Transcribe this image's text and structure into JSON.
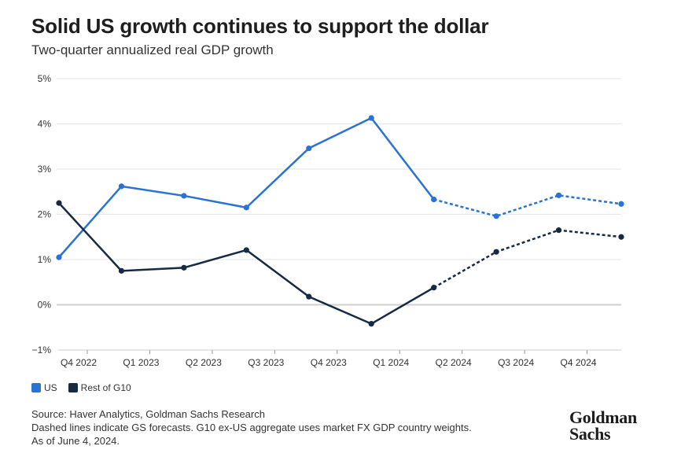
{
  "title": "Solid US growth continues to support the dollar",
  "subtitle": "Two-quarter annualized real GDP growth",
  "legend": [
    {
      "label": "US",
      "color": "#2a72d4"
    },
    {
      "label": "Rest of G10",
      "color": "#172a45"
    }
  ],
  "footer": {
    "line1": "Source: Haver Analytics, Goldman Sachs Research",
    "line2": "Dashed lines indicate GS forecasts. G10 ex-US aggregate uses market FX GDP country weights.",
    "line3": "As of June 4, 2024."
  },
  "logo": {
    "line1": "Goldman",
    "line2": "Sachs"
  },
  "chart_data": {
    "type": "line",
    "y_tick_labels": [
      "−1%",
      "0%",
      "1%",
      "2%",
      "3%",
      "4%",
      "5%"
    ],
    "y_ticks": [
      -1,
      0,
      1,
      2,
      3,
      4,
      5
    ],
    "ylim": [
      -1,
      5
    ],
    "x_tick_labels": [
      "Q4 2022",
      "Q1 2023",
      "Q2 2023",
      "Q3 2023",
      "Q4 2023",
      "Q1 2024",
      "Q2 2024",
      "Q3 2024",
      "Q4 2024"
    ],
    "x_index": [
      0,
      0.5,
      1,
      1.5,
      2,
      2.5,
      3,
      3.5,
      4,
      4.5
    ],
    "grid": true,
    "zero_line": true,
    "forecast_start_index": 6,
    "series": [
      {
        "name": "US",
        "color": "#2a72d4",
        "values": [
          1.05,
          2.62,
          2.41,
          2.15,
          3.46,
          4.13,
          2.33,
          1.96,
          2.42,
          2.23
        ]
      },
      {
        "name": "Rest of G10",
        "color": "#172a45",
        "values": [
          2.25,
          0.75,
          0.82,
          1.21,
          0.18,
          -0.42,
          0.38,
          1.17,
          1.65,
          1.5
        ]
      }
    ]
  }
}
